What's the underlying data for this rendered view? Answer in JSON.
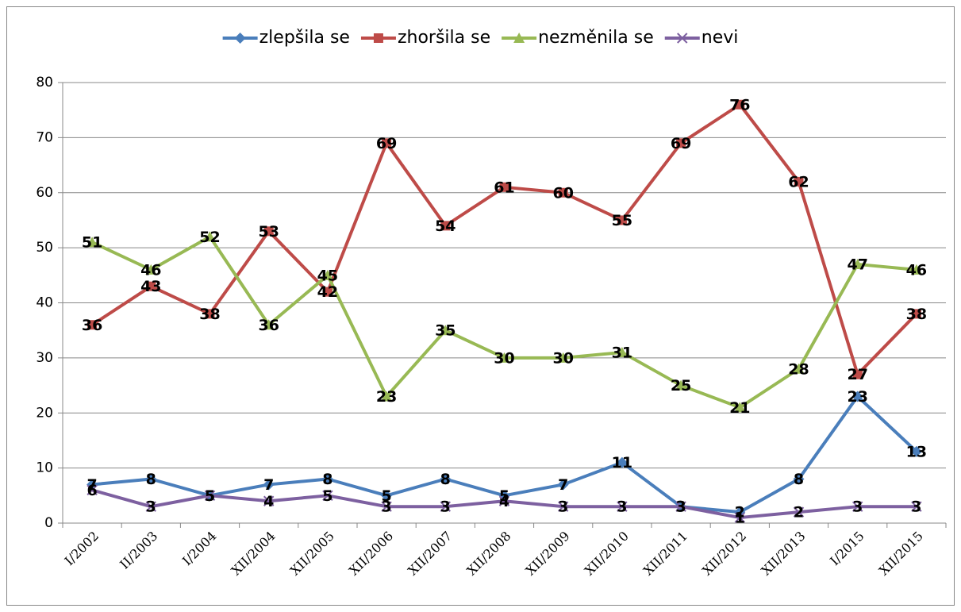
{
  "chart_data": {
    "type": "line",
    "categories": [
      "I/2002",
      "II/2003",
      "I/2004",
      "XII/2004",
      "XII/2005",
      "XII/2006",
      "XII/2007",
      "XII/2008",
      "XII/2009",
      "XII/2010",
      "XII/2011",
      "XII/2012",
      "XII/2013",
      "I/2015",
      "XII/2015"
    ],
    "series": [
      {
        "name": "zlepšila se",
        "color": "#4a7ebb",
        "marker": "diamond",
        "values": [
          7,
          8,
          5,
          7,
          8,
          5,
          8,
          5,
          7,
          11,
          3,
          2,
          8,
          23,
          13
        ]
      },
      {
        "name": "zhoršila se",
        "color": "#be4b48",
        "marker": "square",
        "values": [
          36,
          43,
          38,
          53,
          42,
          69,
          54,
          61,
          60,
          55,
          69,
          76,
          62,
          27,
          38
        ]
      },
      {
        "name": "nezměnila se",
        "color": "#98b954",
        "marker": "triangle",
        "values": [
          51,
          46,
          52,
          36,
          45,
          23,
          35,
          30,
          30,
          31,
          25,
          21,
          28,
          47,
          46
        ]
      },
      {
        "name": "nevi",
        "color": "#7d60a0",
        "marker": "x",
        "values": [
          6,
          3,
          5,
          4,
          5,
          3,
          3,
          4,
          3,
          3,
          3,
          1,
          2,
          3,
          3
        ]
      }
    ],
    "ylim": [
      0,
      80
    ],
    "yticks": [
      0,
      10,
      20,
      30,
      40,
      50,
      60,
      70,
      80
    ],
    "grid": true,
    "legend": "top"
  }
}
